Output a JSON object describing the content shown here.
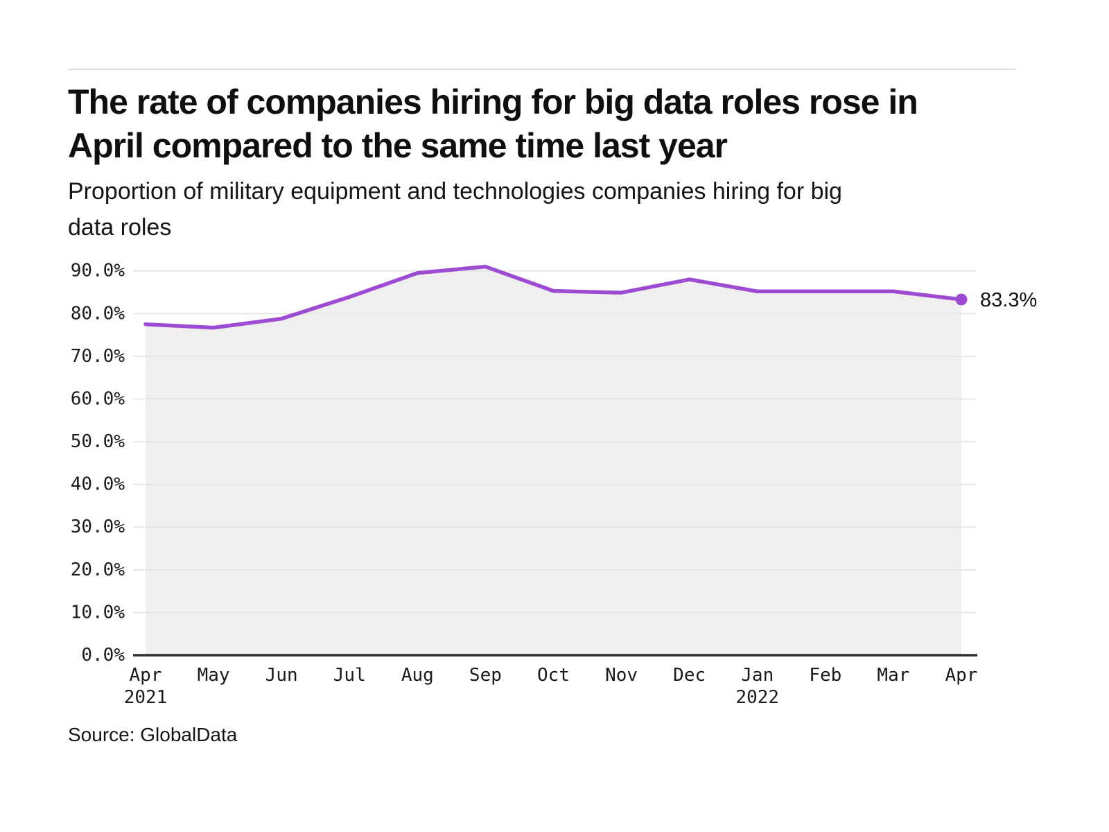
{
  "chart_data": {
    "type": "area",
    "title_lines": [
      "The rate of companies hiring for big data roles rose in",
      "April compared to the same time last year"
    ],
    "subtitle_lines": [
      "Proportion of military equipment and technologies companies hiring for big",
      "data roles"
    ],
    "source": "Source: GlobalData",
    "categories": [
      "Apr 2021",
      "May",
      "Jun",
      "Jul",
      "Aug",
      "Sep",
      "Oct",
      "Nov",
      "Dec",
      "Jan 2022",
      "Feb",
      "Mar",
      "Apr"
    ],
    "x_tick_labels": [
      "Apr",
      "May",
      "Jun",
      "Jul",
      "Aug",
      "Sep",
      "Oct",
      "Nov",
      "Dec",
      "Jan",
      "Feb",
      "Mar",
      "Apr"
    ],
    "x_year_labels": {
      "0": "2021",
      "9": "2022"
    },
    "values": [
      77.5,
      76.7,
      78.8,
      83.9,
      89.5,
      91.0,
      85.3,
      84.9,
      88.0,
      85.2,
      85.2,
      85.2,
      83.3
    ],
    "y_tick_labels": [
      "0.0%",
      "10.0%",
      "20.0%",
      "30.0%",
      "40.0%",
      "50.0%",
      "60.0%",
      "70.0%",
      "80.0%",
      "90.0%"
    ],
    "ylim": [
      0,
      90
    ],
    "grid": true,
    "legend": "none",
    "end_label": "83.3%",
    "xlabel": "",
    "ylabel": ""
  },
  "colors": {
    "line": "#9d4bd2",
    "area_fill": "#efefef",
    "gridline": "#e3e3e3",
    "axis": "#2d2d2d",
    "top_rule": "#dfdfdf",
    "text": "#111111"
  }
}
